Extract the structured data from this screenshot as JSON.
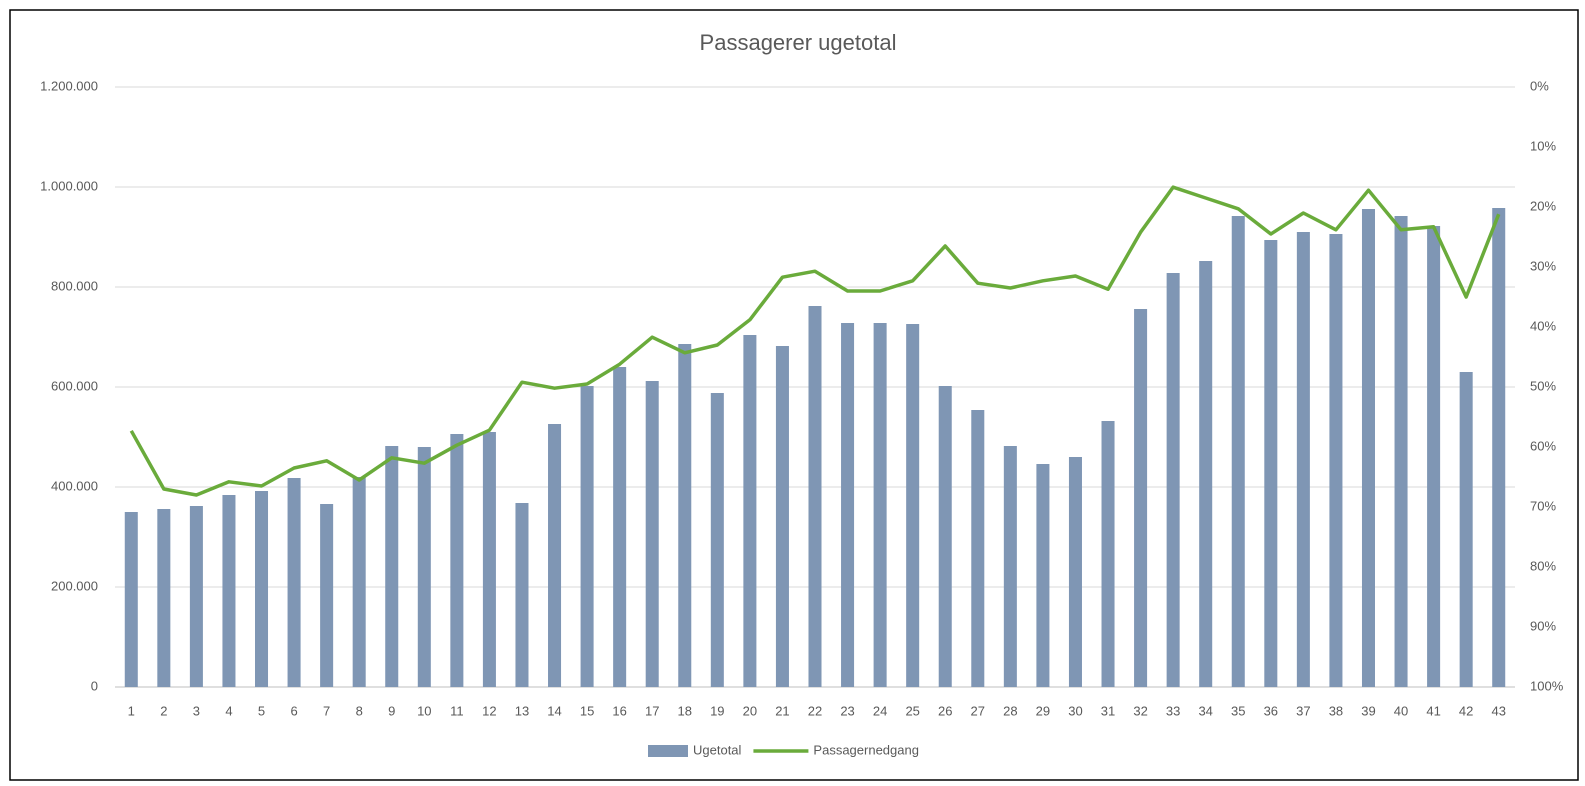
{
  "chart_data": {
    "type": "bar_line",
    "title": "Passagerer ugetotal",
    "categories": [
      "1",
      "2",
      "3",
      "4",
      "5",
      "6",
      "7",
      "8",
      "9",
      "10",
      "11",
      "12",
      "13",
      "14",
      "15",
      "16",
      "17",
      "18",
      "19",
      "20",
      "21",
      "22",
      "23",
      "24",
      "25",
      "26",
      "27",
      "28",
      "29",
      "30",
      "31",
      "32",
      "33",
      "34",
      "35",
      "36",
      "37",
      "38",
      "39",
      "40",
      "41",
      "42",
      "43"
    ],
    "series": [
      {
        "name": "Ugetotal",
        "type": "bar",
        "color": "#7f96b4",
        "values": [
          350000,
          356000,
          362000,
          384000,
          392000,
          418000,
          366000,
          420000,
          482000,
          480000,
          506000,
          510000,
          368000,
          526000,
          602000,
          640000,
          612000,
          686000,
          588000,
          704000,
          682000,
          762000,
          728000,
          728000,
          726000,
          602000,
          554000,
          482000,
          446000,
          460000,
          532000,
          756000,
          828000,
          852000,
          942000,
          894000,
          910000,
          906000,
          956000,
          942000,
          922000,
          630000,
          958000
        ]
      },
      {
        "name": "Passagernedgang",
        "type": "line",
        "axis": "y2",
        "color": "#6aab3b",
        "values": [
          57.3,
          67,
          68,
          65.8,
          66.5,
          63.5,
          62.3,
          65.5,
          61.8,
          62.7,
          59.7,
          57.2,
          49.2,
          50.2,
          49.5,
          46.2,
          41.7,
          44.3,
          43,
          38.8,
          31.7,
          30.7,
          34,
          34,
          32.3,
          26.5,
          32.7,
          33.5,
          32.3,
          31.5,
          33.7,
          24.2,
          16.7,
          18.5,
          20.3,
          24.5,
          21,
          23.8,
          17.2,
          23.8,
          23.3,
          35,
          21.2
        ]
      }
    ],
    "ylim": [
      0,
      1200000
    ],
    "yticks": [
      0,
      {
        "value": 200000,
        "label": "200.000"
      },
      {
        "value": 400000,
        "label": "400.000"
      },
      {
        "value": 600000,
        "label": "600.000"
      },
      {
        "value": 800000,
        "label": "800.000"
      },
      {
        "value": 1000000,
        "label": "1.000.000"
      },
      {
        "value": 1200000,
        "label": "1.200.000"
      }
    ],
    "y2lim": [
      100,
      0
    ],
    "y2ticks": [
      {
        "value": 0,
        "label": "0%"
      },
      {
        "value": 10,
        "label": "10%"
      },
      {
        "value": 20,
        "label": "20%"
      },
      {
        "value": 30,
        "label": "30%"
      },
      {
        "value": 40,
        "label": "40%"
      },
      {
        "value": 50,
        "label": "50%"
      },
      {
        "value": 60,
        "label": "60%"
      },
      {
        "value": 70,
        "label": "70%"
      },
      {
        "value": 80,
        "label": "80%"
      },
      {
        "value": 90,
        "label": "90%"
      },
      {
        "value": 100,
        "label": "100%"
      }
    ],
    "grid": true,
    "legend": "bottom"
  }
}
